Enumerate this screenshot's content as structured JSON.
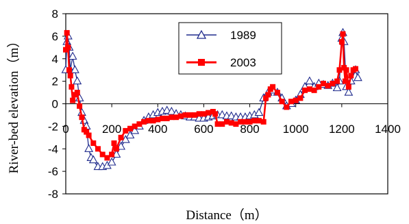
{
  "chart_data": {
    "type": "line",
    "xlabel": "Distance（m）",
    "ylabel": "River-bed elevation（m）",
    "xlim": [
      0,
      1400
    ],
    "ylim": [
      -8,
      8
    ],
    "x_ticks": [
      0,
      200,
      400,
      600,
      800,
      1000,
      1200,
      1400
    ],
    "y_ticks": [
      8,
      6,
      4,
      2,
      0,
      -2,
      -4,
      -6,
      -8
    ],
    "legend_position": "top-center",
    "grid": false,
    "series": [
      {
        "name": "1989",
        "color": "#1f2a8c",
        "marker": "triangle-open",
        "x": [
          0,
          5,
          10,
          15,
          20,
          30,
          40,
          50,
          60,
          70,
          80,
          90,
          100,
          110,
          120,
          140,
          160,
          180,
          200,
          220,
          240,
          260,
          280,
          300,
          320,
          340,
          360,
          380,
          400,
          420,
          440,
          460,
          480,
          500,
          520,
          540,
          560,
          580,
          600,
          620,
          640,
          660,
          680,
          700,
          720,
          740,
          760,
          780,
          800,
          820,
          840,
          860,
          880,
          900,
          920,
          940,
          960,
          980,
          1000,
          1020,
          1040,
          1060,
          1080,
          1100,
          1120,
          1140,
          1160,
          1180,
          1190,
          1200,
          1205,
          1210,
          1220,
          1230,
          1240,
          1260,
          1270
        ],
        "y": [
          3.0,
          5.5,
          6.0,
          5.0,
          3.0,
          4.2,
          3.0,
          2.0,
          0.5,
          -0.8,
          -1.5,
          -2.0,
          -4.0,
          -4.8,
          -5.0,
          -5.6,
          -5.6,
          -5.5,
          -5.2,
          -4.5,
          -3.8,
          -3.2,
          -2.8,
          -2.4,
          -2.0,
          -1.5,
          -1.2,
          -1.0,
          -0.8,
          -0.7,
          -0.6,
          -0.7,
          -0.9,
          -1.0,
          -1.1,
          -1.2,
          -1.2,
          -1.3,
          -1.3,
          -1.2,
          -1.1,
          -1.0,
          -1.0,
          -1.1,
          -1.1,
          -1.2,
          -1.2,
          -1.2,
          -1.1,
          -1.0,
          -0.8,
          0.5,
          1.0,
          1.2,
          1.0,
          0.5,
          -0.2,
          0.0,
          0.3,
          0.8,
          1.5,
          2.0,
          1.5,
          1.8,
          1.7,
          1.6,
          1.8,
          1.4,
          2.0,
          5.8,
          6.3,
          5.5,
          1.5,
          1.0,
          2.0,
          3.0,
          2.3
        ]
      },
      {
        "name": "2003",
        "color": "#ff0000",
        "marker": "square-filled",
        "x": [
          0,
          5,
          10,
          15,
          20,
          25,
          30,
          40,
          50,
          60,
          70,
          80,
          90,
          100,
          120,
          140,
          160,
          180,
          200,
          210,
          220,
          240,
          260,
          280,
          300,
          320,
          340,
          360,
          380,
          400,
          420,
          440,
          460,
          480,
          500,
          520,
          540,
          560,
          580,
          600,
          620,
          640,
          650,
          660,
          680,
          700,
          720,
          740,
          760,
          780,
          800,
          820,
          840,
          860,
          870,
          880,
          890,
          900,
          920,
          940,
          960,
          980,
          1000,
          1020,
          1040,
          1060,
          1080,
          1100,
          1120,
          1140,
          1160,
          1180,
          1190,
          1200,
          1205,
          1210,
          1215,
          1220,
          1230,
          1240,
          1250,
          1260
        ],
        "y": [
          4.8,
          6.3,
          5.0,
          3.0,
          2.5,
          1.5,
          0.3,
          0.8,
          1.0,
          -0.2,
          -1.2,
          -2.3,
          -2.5,
          -2.8,
          -3.5,
          -4.0,
          -4.5,
          -4.8,
          -4.5,
          -3.5,
          -4.0,
          -3.0,
          -2.4,
          -2.2,
          -2.0,
          -1.8,
          -1.6,
          -1.5,
          -1.5,
          -1.4,
          -1.3,
          -1.3,
          -1.2,
          -1.2,
          -1.1,
          -1.0,
          -1.0,
          -1.0,
          -0.9,
          -0.9,
          -0.8,
          -0.7,
          -0.9,
          -1.8,
          -1.8,
          -1.6,
          -1.7,
          -1.8,
          -1.6,
          -1.6,
          -1.6,
          -1.5,
          -1.5,
          -1.6,
          0.5,
          0.8,
          1.3,
          1.5,
          1.0,
          0.2,
          -0.3,
          0.2,
          0.3,
          0.5,
          1.2,
          1.3,
          1.2,
          1.5,
          1.8,
          1.6,
          1.8,
          2.0,
          3.0,
          5.5,
          6.2,
          3.2,
          2.0,
          3.0,
          1.5,
          2.5,
          3.0,
          3.1
        ]
      }
    ]
  }
}
